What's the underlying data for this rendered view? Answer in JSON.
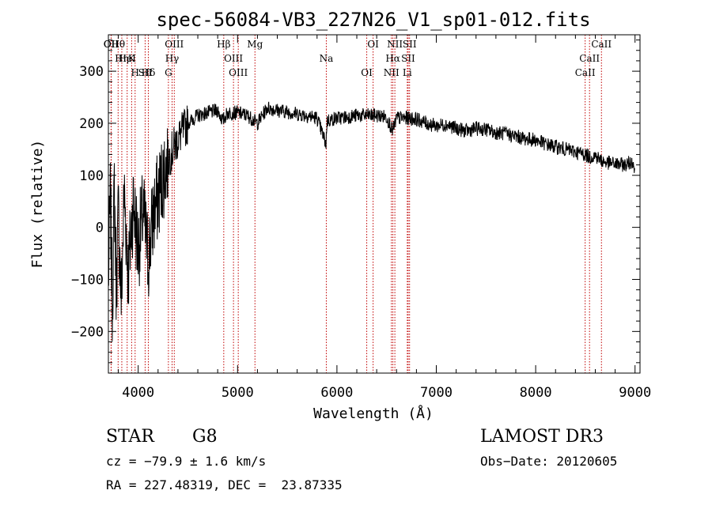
{
  "chart_data": {
    "type": "line",
    "title": "spec-56084-VB3_227N26_V1_sp01-012.fits",
    "xlabel": "Wavelength (Å)",
    "ylabel": "Flux (relative)",
    "xlim": [
      3700,
      9050
    ],
    "ylim": [
      -280,
      370
    ],
    "xticks": [
      4000,
      5000,
      6000,
      7000,
      8000,
      9000
    ],
    "yticks": [
      -200,
      -100,
      0,
      100,
      200,
      300
    ],
    "grid": false,
    "series": [
      {
        "name": "flux",
        "x": [
          3700,
          3720,
          3740,
          3760,
          3780,
          3800,
          3830,
          3860,
          3900,
          3950,
          4000,
          4050,
          4100,
          4150,
          4200,
          4250,
          4300,
          4350,
          4400,
          4500,
          4600,
          4700,
          4800,
          4850,
          4900,
          5000,
          5100,
          5200,
          5300,
          5400,
          5500,
          5600,
          5700,
          5800,
          5890,
          5900,
          6000,
          6100,
          6200,
          6300,
          6400,
          6500,
          6563,
          6600,
          6700,
          6800,
          6900,
          7000,
          7100,
          7200,
          7300,
          7400,
          7500,
          7600,
          7700,
          7800,
          7900,
          8000,
          8100,
          8200,
          8300,
          8400,
          8500,
          8542,
          8600,
          8662,
          8700,
          8800,
          8900,
          8980,
          9000
        ],
        "values": [
          -100,
          60,
          -150,
          80,
          -120,
          30,
          -140,
          70,
          -90,
          50,
          -40,
          30,
          -60,
          20,
          60,
          100,
          130,
          150,
          170,
          200,
          215,
          220,
          225,
          205,
          220,
          220,
          215,
          200,
          230,
          225,
          222,
          218,
          215,
          210,
          160,
          205,
          210,
          212,
          215,
          215,
          215,
          212,
          185,
          210,
          210,
          208,
          200,
          195,
          198,
          190,
          185,
          190,
          188,
          182,
          180,
          175,
          170,
          168,
          160,
          155,
          150,
          145,
          140,
          135,
          138,
          128,
          125,
          122,
          120,
          128,
          100
        ]
      }
    ],
    "lines": [
      {
        "label": "Hθ",
        "wave": 3798
      },
      {
        "label": "K",
        "wave": 3934
      },
      {
        "label": "Hδ",
        "wave": 4102
      },
      {
        "label": "OII",
        "wave": 3727
      },
      {
        "label": "HeI",
        "wave": 3889
      },
      {
        "label": "SII",
        "wave": 4070
      },
      {
        "label": "OII",
        "wave": 3729
      },
      {
        "label": "Hη",
        "wave": 3835
      },
      {
        "label": "H",
        "wave": 3969
      },
      {
        "label": "OIII",
        "wave": 4363
      },
      {
        "label": "Hγ",
        "wave": 4341
      },
      {
        "label": "G",
        "wave": 4304
      },
      {
        "label": "Hβ",
        "wave": 4861
      },
      {
        "label": "OIII",
        "wave": 4959
      },
      {
        "label": "OIII",
        "wave": 5007
      },
      {
        "label": "Mg",
        "wave": 5175
      },
      {
        "label": "Na",
        "wave": 5893
      },
      {
        "label": "OI",
        "wave": 6300
      },
      {
        "label": "OI",
        "wave": 6364
      },
      {
        "label": "Hα",
        "wave": 6563
      },
      {
        "label": "NII",
        "wave": 6548
      },
      {
        "label": "NII",
        "wave": 6583
      },
      {
        "label": "SII",
        "wave": 6717
      },
      {
        "label": "Li",
        "wave": 6708
      },
      {
        "label": "SII",
        "wave": 6731
      },
      {
        "label": "CaII",
        "wave": 8542
      },
      {
        "label": "CaII",
        "wave": 8498
      },
      {
        "label": "CaII",
        "wave": 8662
      }
    ]
  },
  "info": {
    "class": "STAR",
    "subclass": "G8",
    "survey": "LAMOST DR3",
    "cz": "cz = −79.9 ± 1.6 km/s",
    "obs_date": "Obs−Date: 20120605",
    "coords": "RA = 227.48319, DEC =  23.87335"
  },
  "colors": {
    "spectrum": "#000000",
    "line_marker": "#c00000"
  }
}
